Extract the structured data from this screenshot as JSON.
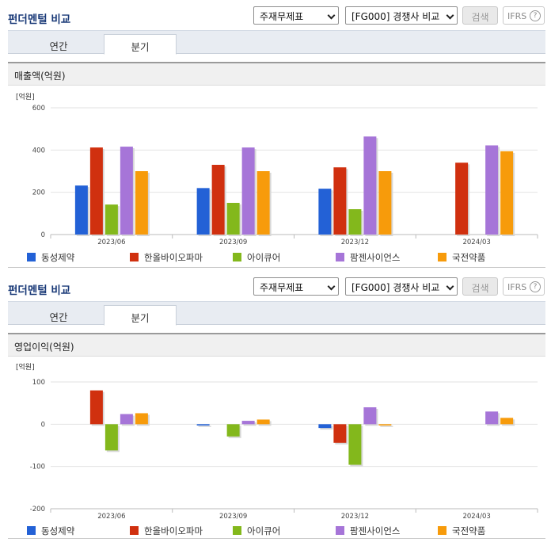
{
  "panels": [
    {
      "title": "펀더멘털 비교",
      "select_statement": "주재무제표",
      "select_compare": "[FG000] 경쟁사 비교",
      "search_button": "검색",
      "ifrs_label": "IFRS",
      "help_icon": "?",
      "tabs": [
        "연간",
        "분기"
      ],
      "active_tab": "분기",
      "subtitle": "매출액(억원)"
    },
    {
      "title": "펀더멘털 비교",
      "select_statement": "주재무제표",
      "select_compare": "[FG000] 경쟁사 비교",
      "search_button": "검색",
      "ifrs_label": "IFRS",
      "help_icon": "?",
      "tabs": [
        "연간",
        "분기"
      ],
      "active_tab": "분기",
      "subtitle": "영업이익(억원)"
    }
  ],
  "chart_data": [
    {
      "type": "bar",
      "title": "매출액(억원)",
      "unit_label": "[억원]",
      "categories": [
        "2023/06",
        "2023/09",
        "2023/12",
        "2024/03"
      ],
      "ylim": [
        0,
        600
      ],
      "yticks": [
        "0",
        "200",
        "400",
        "600"
      ],
      "grid": true,
      "legend_position": "bottom",
      "series": [
        {
          "name": "동성제약",
          "color": "#2361d6",
          "values": [
            232,
            220,
            217,
            null
          ]
        },
        {
          "name": "한올바이오파마",
          "color": "#d0300f",
          "values": [
            412,
            330,
            318,
            340
          ]
        },
        {
          "name": "아이큐어",
          "color": "#83b81c",
          "values": [
            142,
            150,
            120,
            null
          ]
        },
        {
          "name": "팜젠사이언스",
          "color": "#a675d8",
          "values": [
            416,
            412,
            464,
            422
          ]
        },
        {
          "name": "국전약품",
          "color": "#f79b0b",
          "values": [
            300,
            300,
            300,
            394
          ]
        }
      ]
    },
    {
      "type": "bar",
      "title": "영업이익(억원)",
      "unit_label": "[억원]",
      "categories": [
        "2023/06",
        "2023/09",
        "2023/12",
        "2024/03"
      ],
      "ylim": [
        -200,
        100
      ],
      "yticks": [
        "-200",
        "-100",
        "0",
        "100"
      ],
      "grid": true,
      "legend_position": "bottom",
      "series": [
        {
          "name": "동성제약",
          "color": "#2361d6",
          "values": [
            null,
            -3,
            -9,
            null
          ]
        },
        {
          "name": "한올바이오파마",
          "color": "#d0300f",
          "values": [
            80,
            null,
            -44,
            null
          ]
        },
        {
          "name": "아이큐어",
          "color": "#83b81c",
          "values": [
            -62,
            -29,
            -96,
            null
          ]
        },
        {
          "name": "팜젠사이언스",
          "color": "#a675d8",
          "values": [
            24,
            8,
            40,
            30
          ]
        },
        {
          "name": "국전약품",
          "color": "#f79b0b",
          "values": [
            26,
            11,
            -3,
            15
          ]
        }
      ]
    }
  ]
}
